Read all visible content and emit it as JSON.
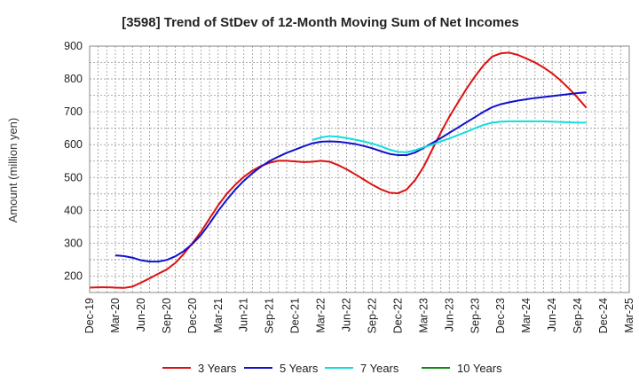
{
  "chart_data": {
    "type": "line",
    "title": "[3598]  Trend of StDev of 12-Month Moving Sum of Net Incomes",
    "ylabel": "Amount (million yen)",
    "xlabel": "",
    "ylim": [
      150,
      900
    ],
    "yticks": [
      200,
      300,
      400,
      500,
      600,
      700,
      800,
      900
    ],
    "x_start": "2019-12",
    "x_end": "2025-03",
    "xtick_labels": [
      "Dec-19",
      "Mar-20",
      "Jun-20",
      "Sep-20",
      "Dec-20",
      "Mar-21",
      "Jun-21",
      "Sep-21",
      "Dec-21",
      "Mar-22",
      "Jun-22",
      "Sep-22",
      "Dec-22",
      "Mar-23",
      "Jun-23",
      "Sep-23",
      "Dec-23",
      "Mar-24",
      "Jun-24",
      "Sep-24",
      "Dec-24",
      "Mar-25"
    ],
    "grid": true,
    "legend_position": "bottom",
    "series": [
      {
        "name": "3 Years",
        "color": "#dd1111",
        "points": [
          [
            "2019-12",
            165
          ],
          [
            "2020-01",
            166
          ],
          [
            "2020-02",
            166
          ],
          [
            "2020-03",
            165
          ],
          [
            "2020-04",
            164
          ],
          [
            "2020-05",
            168
          ],
          [
            "2020-06",
            180
          ],
          [
            "2020-07",
            193
          ],
          [
            "2020-08",
            207
          ],
          [
            "2020-09",
            220
          ],
          [
            "2020-10",
            240
          ],
          [
            "2020-11",
            268
          ],
          [
            "2020-12",
            300
          ],
          [
            "2021-01",
            335
          ],
          [
            "2021-02",
            375
          ],
          [
            "2021-03",
            415
          ],
          [
            "2021-04",
            450
          ],
          [
            "2021-05",
            478
          ],
          [
            "2021-06",
            502
          ],
          [
            "2021-07",
            521
          ],
          [
            "2021-08",
            535
          ],
          [
            "2021-09",
            545
          ],
          [
            "2021-10",
            551
          ],
          [
            "2021-11",
            551
          ],
          [
            "2021-12",
            549
          ],
          [
            "2022-01",
            547
          ],
          [
            "2022-02",
            548
          ],
          [
            "2022-03",
            551
          ],
          [
            "2022-04",
            548
          ],
          [
            "2022-05",
            538
          ],
          [
            "2022-06",
            525
          ],
          [
            "2022-07",
            510
          ],
          [
            "2022-08",
            494
          ],
          [
            "2022-09",
            478
          ],
          [
            "2022-10",
            464
          ],
          [
            "2022-11",
            454
          ],
          [
            "2022-12",
            452
          ],
          [
            "2023-01",
            463
          ],
          [
            "2023-02",
            492
          ],
          [
            "2023-03",
            533
          ],
          [
            "2023-04",
            585
          ],
          [
            "2023-05",
            637
          ],
          [
            "2023-06",
            685
          ],
          [
            "2023-07",
            728
          ],
          [
            "2023-08",
            770
          ],
          [
            "2023-09",
            808
          ],
          [
            "2023-10",
            842
          ],
          [
            "2023-11",
            868
          ],
          [
            "2023-12",
            878
          ],
          [
            "2024-01",
            880
          ],
          [
            "2024-02",
            873
          ],
          [
            "2024-03",
            862
          ],
          [
            "2024-04",
            850
          ],
          [
            "2024-05",
            835
          ],
          [
            "2024-06",
            817
          ],
          [
            "2024-07",
            795
          ],
          [
            "2024-08",
            770
          ],
          [
            "2024-09",
            742
          ],
          [
            "2024-10",
            712
          ]
        ]
      },
      {
        "name": "5 Years",
        "color": "#1111cc",
        "points": [
          [
            "2020-03",
            263
          ],
          [
            "2020-04",
            261
          ],
          [
            "2020-05",
            256
          ],
          [
            "2020-06",
            248
          ],
          [
            "2020-07",
            244
          ],
          [
            "2020-08",
            244
          ],
          [
            "2020-09",
            249
          ],
          [
            "2020-10",
            260
          ],
          [
            "2020-11",
            276
          ],
          [
            "2020-12",
            298
          ],
          [
            "2021-01",
            325
          ],
          [
            "2021-02",
            360
          ],
          [
            "2021-03",
            398
          ],
          [
            "2021-04",
            432
          ],
          [
            "2021-05",
            463
          ],
          [
            "2021-06",
            490
          ],
          [
            "2021-07",
            513
          ],
          [
            "2021-08",
            533
          ],
          [
            "2021-09",
            550
          ],
          [
            "2021-10",
            563
          ],
          [
            "2021-11",
            575
          ],
          [
            "2021-12",
            585
          ],
          [
            "2022-01",
            595
          ],
          [
            "2022-02",
            604
          ],
          [
            "2022-03",
            609
          ],
          [
            "2022-04",
            610
          ],
          [
            "2022-05",
            609
          ],
          [
            "2022-06",
            606
          ],
          [
            "2022-07",
            602
          ],
          [
            "2022-08",
            596
          ],
          [
            "2022-09",
            589
          ],
          [
            "2022-10",
            580
          ],
          [
            "2022-11",
            572
          ],
          [
            "2022-12",
            568
          ],
          [
            "2023-01",
            568
          ],
          [
            "2023-02",
            576
          ],
          [
            "2023-03",
            590
          ],
          [
            "2023-04",
            605
          ],
          [
            "2023-05",
            620
          ],
          [
            "2023-06",
            636
          ],
          [
            "2023-07",
            652
          ],
          [
            "2023-08",
            668
          ],
          [
            "2023-09",
            684
          ],
          [
            "2023-10",
            700
          ],
          [
            "2023-11",
            714
          ],
          [
            "2023-12",
            723
          ],
          [
            "2024-01",
            729
          ],
          [
            "2024-02",
            734
          ],
          [
            "2024-03",
            738
          ],
          [
            "2024-04",
            742
          ],
          [
            "2024-05",
            745
          ],
          [
            "2024-06",
            748
          ],
          [
            "2024-07",
            751
          ],
          [
            "2024-08",
            754
          ],
          [
            "2024-09",
            757
          ],
          [
            "2024-10",
            759
          ]
        ]
      },
      {
        "name": "7 Years",
        "color": "#11dddd",
        "points": [
          [
            "2022-02",
            614
          ],
          [
            "2022-03",
            622
          ],
          [
            "2022-04",
            626
          ],
          [
            "2022-05",
            624
          ],
          [
            "2022-06",
            620
          ],
          [
            "2022-07",
            615
          ],
          [
            "2022-08",
            610
          ],
          [
            "2022-09",
            603
          ],
          [
            "2022-10",
            595
          ],
          [
            "2022-11",
            585
          ],
          [
            "2022-12",
            578
          ],
          [
            "2023-01",
            577
          ],
          [
            "2023-02",
            583
          ],
          [
            "2023-03",
            592
          ],
          [
            "2023-04",
            600
          ],
          [
            "2023-05",
            610
          ],
          [
            "2023-06",
            619
          ],
          [
            "2023-07",
            629
          ],
          [
            "2023-08",
            639
          ],
          [
            "2023-09",
            650
          ],
          [
            "2023-10",
            660
          ],
          [
            "2023-11",
            667
          ],
          [
            "2023-12",
            670
          ],
          [
            "2024-01",
            671
          ],
          [
            "2024-02",
            671
          ],
          [
            "2024-03",
            671
          ],
          [
            "2024-04",
            671
          ],
          [
            "2024-05",
            671
          ],
          [
            "2024-06",
            670
          ],
          [
            "2024-07",
            669
          ],
          [
            "2024-08",
            668
          ],
          [
            "2024-09",
            667
          ],
          [
            "2024-10",
            667
          ]
        ]
      },
      {
        "name": "10 Years",
        "color": "#118811",
        "points": []
      }
    ]
  }
}
